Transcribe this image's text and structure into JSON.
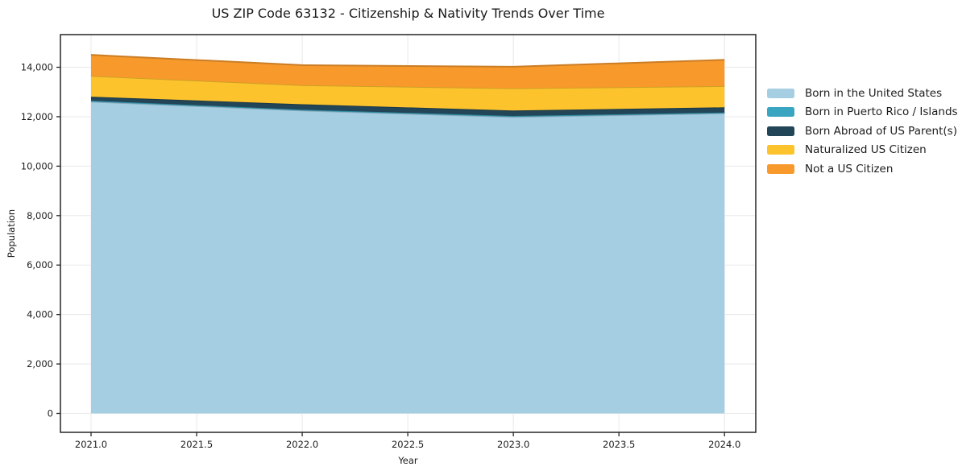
{
  "title": "US ZIP Code 63132 - Citizenship & Nativity Trends Over Time",
  "chart_data": {
    "type": "area",
    "stacked": true,
    "title": "US ZIP Code 63132 - Citizenship & Nativity Trends Over Time",
    "xlabel": "Year",
    "ylabel": "Population",
    "x": [
      2021,
      2022,
      2023,
      2024
    ],
    "series": [
      {
        "name": "Born in the United States",
        "color": "#a6cee3",
        "values": [
          12610,
          12250,
          11990,
          12140
        ]
      },
      {
        "name": "Born in Puerto Rico / Islands",
        "color": "#39a5c0",
        "values": [
          40,
          35,
          40,
          30
        ]
      },
      {
        "name": "Born Abroad of US Parent(s)",
        "color": "#224558",
        "values": [
          160,
          220,
          220,
          210
        ]
      },
      {
        "name": "Naturalized US Citizen",
        "color": "#fcc32d",
        "values": [
          840,
          770,
          900,
          860
        ]
      },
      {
        "name": "Not a US Citizen",
        "color": "#f8992c",
        "values": [
          850,
          810,
          870,
          1060
        ]
      }
    ],
    "totals": [
      14500,
      14085,
      14020,
      14300
    ],
    "xticks": {
      "values": [
        2021.0,
        2021.5,
        2022.0,
        2022.5,
        2023.0,
        2023.5,
        2024.0
      ],
      "labels": [
        "2021.0",
        "2021.5",
        "2022.0",
        "2022.5",
        "2023.0",
        "2023.5",
        "2024.0"
      ]
    },
    "yticks": {
      "values": [
        0,
        2000,
        4000,
        6000,
        8000,
        10000,
        12000,
        14000
      ],
      "labels": [
        "0",
        "2,000",
        "4,000",
        "6,000",
        "8,000",
        "10,000",
        "12,000",
        "14,000"
      ]
    },
    "xlim": [
      2020.855,
      2024.148
    ],
    "ylim": [
      -765,
      15320
    ],
    "grid": true,
    "legend_position": "right of plot, no frame"
  },
  "colors": {
    "background": "#ffffff",
    "grid": "#e8e8e8",
    "spine": "#262626",
    "tick_text": "#1c1c1c",
    "title_text": "#1a1a1a"
  }
}
